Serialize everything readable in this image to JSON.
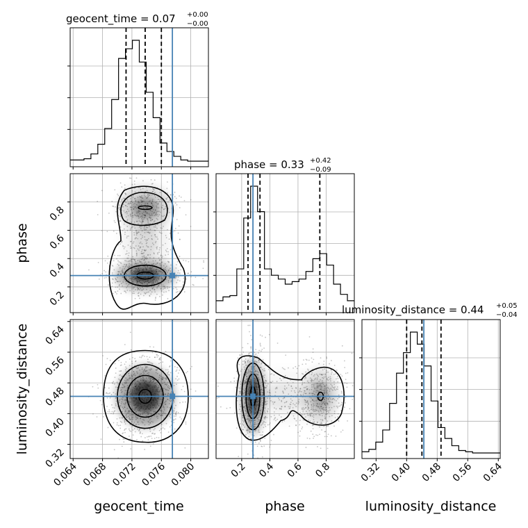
{
  "chart_data": {
    "type": "corner",
    "parameters": [
      "geocent_time",
      "phase",
      "luminosity_distance"
    ],
    "titles": {
      "geocent_time": {
        "prefix": "geocent_time = 0.07",
        "plus": "+0.00",
        "minus": "−0.00"
      },
      "phase": {
        "prefix": "phase = 0.33",
        "plus": "+0.42",
        "minus": "−0.09"
      },
      "luminosity_distance": {
        "prefix": "luminosity_distance = 0.44",
        "plus": "+0.05",
        "minus": "−0.04"
      }
    },
    "axis_labels": {
      "geocent_time": "geocent_time",
      "phase": "phase",
      "luminosity_distance": "luminosity_distance"
    },
    "ranges": {
      "geocent_time": [
        0.0636,
        0.0824
      ],
      "phase": [
        0.018,
        1.0
      ],
      "luminosity_distance": [
        0.283,
        0.645
      ]
    },
    "ticks": {
      "geocent_time": [
        0.064,
        0.068,
        0.072,
        0.076,
        0.08
      ],
      "phase": [
        0.2,
        0.4,
        0.6,
        0.8
      ],
      "luminosity_distance": [
        0.32,
        0.4,
        0.48,
        0.56,
        0.64
      ]
    },
    "tick_labels": {
      "geocent_time": [
        "0.064",
        "0.068",
        "0.072",
        "0.076",
        "0.080"
      ],
      "phase": [
        "0.2",
        "0.4",
        "0.6",
        "0.8"
      ],
      "luminosity_distance": [
        "0.32",
        "0.40",
        "0.48",
        "0.56",
        "0.64"
      ]
    },
    "truths": {
      "geocent_time": 0.0775,
      "phase": 0.28,
      "luminosity_distance": 0.445
    },
    "quantiles": {
      "geocent_time": [
        0.0712,
        0.0738,
        0.076
      ],
      "phase": [
        0.245,
        0.33,
        0.755
      ],
      "luminosity_distance": [
        0.4,
        0.44,
        0.49
      ]
    },
    "histograms": {
      "geocent_time": {
        "range": [
          0.0636,
          0.0824
        ],
        "counts": [
          1,
          1,
          2,
          6,
          14,
          27,
          51,
          85,
          93,
          100,
          82,
          57,
          36,
          15,
          8,
          4,
          1,
          0,
          0,
          0
        ]
      },
      "phase": {
        "range": [
          0.018,
          1.0
        ],
        "counts": [
          5,
          8,
          9,
          30,
          70,
          95,
          75,
          30,
          25,
          22,
          18,
          20,
          22,
          28,
          38,
          42,
          33,
          18,
          10,
          5
        ]
      },
      "luminosity_distance": {
        "range": [
          0.283,
          0.645
        ],
        "counts": [
          1,
          3,
          9,
          19,
          41,
          66,
          83,
          100,
          90,
          72,
          43,
          21,
          12,
          6,
          2,
          1,
          0,
          0,
          0,
          0
        ]
      }
    },
    "grid": true,
    "truth_color": "#4682b4",
    "hist_color": "#000000"
  }
}
